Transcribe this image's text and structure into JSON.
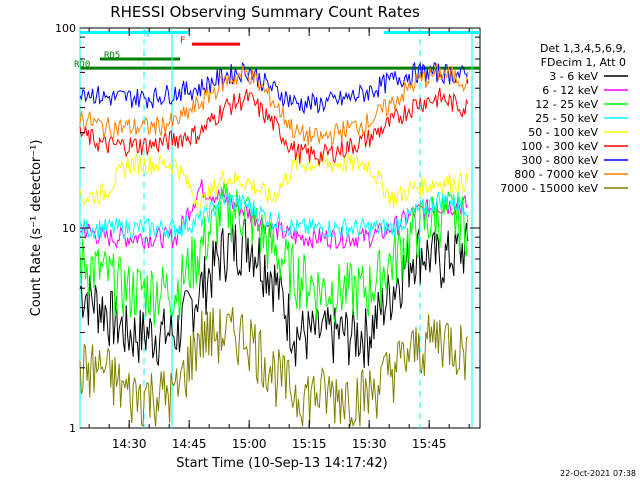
{
  "chart_data": {
    "type": "line",
    "title": "RHESSI Observing Summary Count Rates",
    "xlabel": "Start Time (10-Sep-13 14:17:42)",
    "ylabel": "Count Rate (s⁻¹ detector⁻¹)",
    "yscale": "log",
    "ylim": [
      1,
      100
    ],
    "xlim_minutes": [
      0,
      100
    ],
    "x_ticks": [
      {
        "label": "14:30",
        "minute": 12.3
      },
      {
        "label": "14:45",
        "minute": 27.3
      },
      {
        "label": "15:00",
        "minute": 42.3
      },
      {
        "label": "15:15",
        "minute": 57.3
      },
      {
        "label": "15:30",
        "minute": 72.3
      },
      {
        "label": "15:45",
        "minute": 87.3
      }
    ],
    "y_ticks": [
      {
        "label": "1",
        "value": 1
      },
      {
        "label": "10",
        "value": 10
      },
      {
        "label": "100",
        "value": 100
      }
    ],
    "legend_header": [
      "Det 1,3,4,5,6,9,",
      "FDecim 1, Att 0"
    ],
    "legend_placement": "right",
    "series": [
      {
        "name": "3 - 6 keV",
        "color": "#000000",
        "values": [
          5,
          4,
          3,
          3,
          3,
          5,
          8,
          9,
          6,
          3,
          3,
          3,
          3,
          5,
          8,
          7,
          8
        ]
      },
      {
        "name": "6 - 12 keV",
        "color": "#ff00ff",
        "values": [
          10,
          9,
          9,
          9,
          9,
          16,
          14,
          12,
          10,
          9,
          9,
          9,
          9,
          10,
          12,
          13,
          13
        ]
      },
      {
        "name": "12 - 25 keV",
        "color": "#00ff00",
        "values": [
          7,
          6,
          5,
          5,
          5,
          8,
          13,
          12,
          8,
          6,
          5,
          5,
          5,
          7,
          10,
          12,
          11
        ]
      },
      {
        "name": "25 - 50 keV",
        "color": "#00ffff",
        "values": [
          10,
          10,
          10,
          10,
          10,
          11,
          14,
          13,
          11,
          10,
          10,
          10,
          10,
          10,
          12,
          14,
          13
        ]
      },
      {
        "name": "50 - 100 keV",
        "color": "#ffff00",
        "values": [
          14,
          15,
          21,
          21,
          21,
          13,
          18,
          17,
          14,
          21,
          21,
          21,
          21,
          14,
          16,
          17,
          17
        ]
      },
      {
        "name": "100 - 300 keV",
        "color": "#ff0000",
        "values": [
          30,
          26,
          26,
          26,
          28,
          30,
          40,
          45,
          34,
          24,
          23,
          25,
          28,
          34,
          42,
          45,
          40
        ]
      },
      {
        "name": "300 - 800 keV",
        "color": "#0000ff",
        "values": [
          50,
          45,
          45,
          45,
          48,
          50,
          58,
          62,
          50,
          42,
          42,
          44,
          48,
          55,
          60,
          60,
          58
        ]
      },
      {
        "name": "800 - 7000 keV",
        "color": "#ff8000",
        "values": [
          36,
          32,
          32,
          32,
          34,
          42,
          54,
          60,
          44,
          30,
          28,
          31,
          34,
          42,
          54,
          60,
          55
        ]
      },
      {
        "name": "7000 - 15000 keV",
        "color": "#808000",
        "values": [
          2,
          2,
          1.5,
          1.5,
          1.5,
          3,
          3,
          3,
          2,
          1.5,
          1.5,
          1.5,
          1.5,
          2,
          2.5,
          3,
          2.5
        ]
      }
    ],
    "series_x_minutes": [
      0,
      6,
      12,
      18,
      24,
      30,
      36,
      42,
      48,
      54,
      60,
      66,
      72,
      78,
      84,
      90,
      96
    ],
    "flag_bars": [
      {
        "label": "N",
        "color": "#00ffff",
        "segments": [
          [
            0,
            27
          ],
          [
            76,
            100
          ]
        ],
        "level": 95
      },
      {
        "label": "F",
        "color": "#ff0000",
        "segments": [
          [
            28,
            40
          ]
        ],
        "level": 83
      },
      {
        "label": "RD0",
        "color": "#008000",
        "segments": [
          [
            0,
            100
          ]
        ],
        "level": 63
      },
      {
        "label": "RD5",
        "color": "#008000",
        "segments": [
          [
            5,
            25
          ]
        ],
        "level": 70
      }
    ],
    "vertical_lines_minutes": [
      0,
      23,
      98
    ],
    "dashed_lines_minutes": [
      16,
      85
    ],
    "footer_date": "22-Oct-2021 07:38"
  }
}
